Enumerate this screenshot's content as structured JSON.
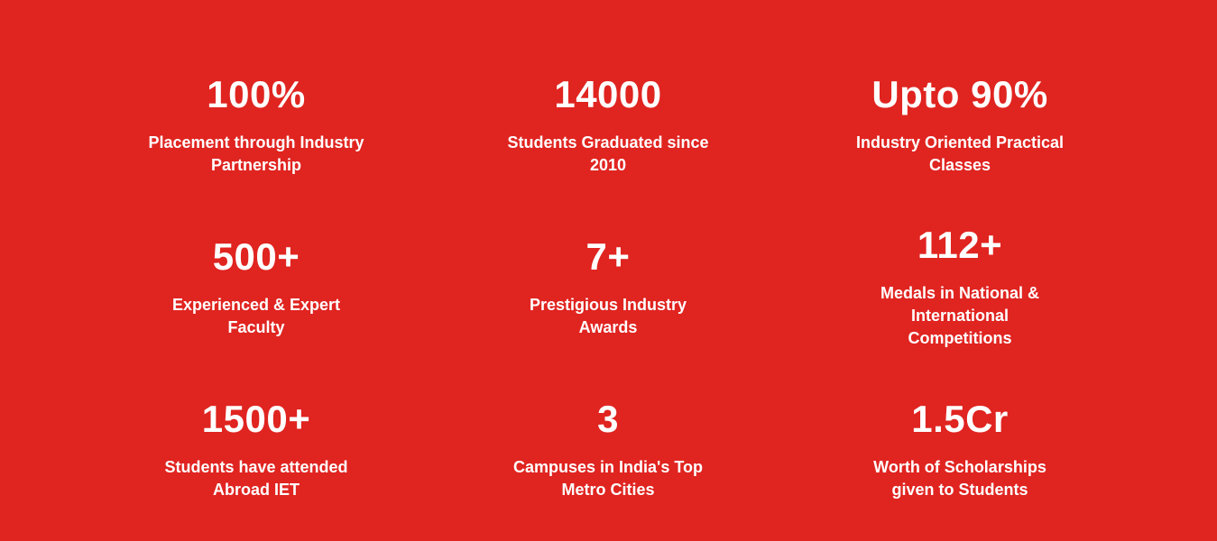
{
  "colors": {
    "background": "#e02420",
    "text": "#ffffff"
  },
  "stats": [
    {
      "value": "100%",
      "description": "Placement through Industry Partnership"
    },
    {
      "value": "14000",
      "description": "Students Graduated since 2010"
    },
    {
      "value": "Upto 90%",
      "description": "Industry Oriented Practical Classes"
    },
    {
      "value": "500+",
      "description": "Experienced & Expert Faculty"
    },
    {
      "value": "7+",
      "description": "Prestigious Industry Awards"
    },
    {
      "value": "112+",
      "description": "Medals in National & International Competitions"
    },
    {
      "value": "1500+",
      "description": "Students have attended Abroad IET"
    },
    {
      "value": "3",
      "description": "Campuses in India's Top Metro Cities"
    },
    {
      "value": "1.5Cr",
      "description": "Worth of Scholarships given to Students"
    }
  ]
}
